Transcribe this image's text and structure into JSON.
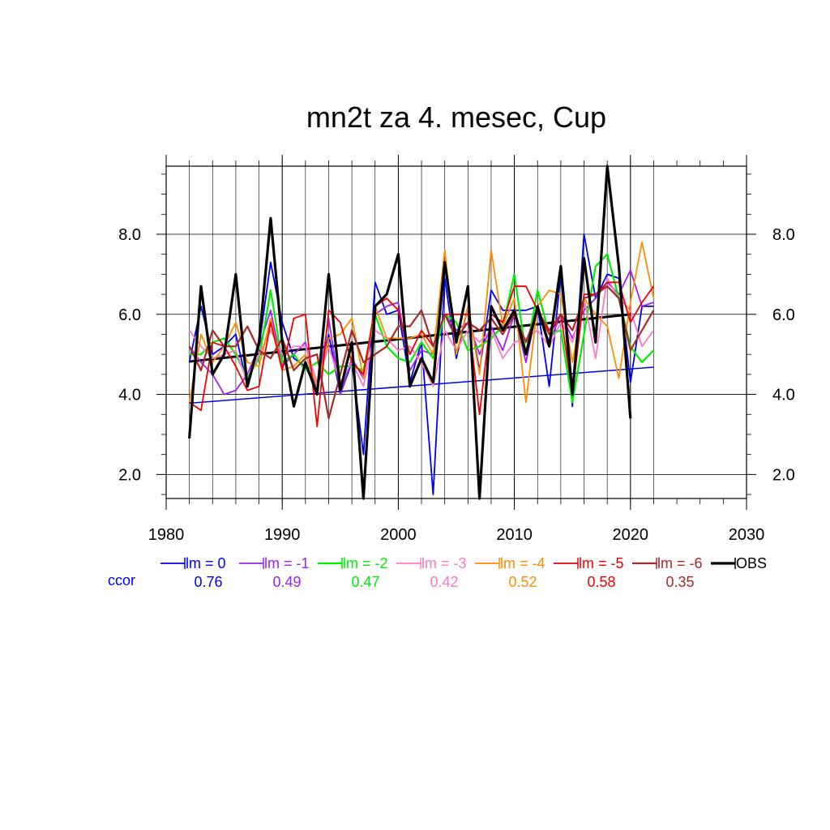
{
  "chart_data": {
    "type": "line",
    "title": "mn2t za 4. mesec, Cup",
    "xlabel": "",
    "ylabel": "",
    "xlim": [
      1980,
      2030
    ],
    "ylim": [
      1.4,
      9.7
    ],
    "x_ticks": [
      "1980",
      "1990",
      "2000",
      "2010",
      "2020",
      "2030"
    ],
    "y_ticks": [
      "2.0",
      "4.0",
      "6.0",
      "8.0"
    ],
    "grid": true,
    "legend_position": "bottom",
    "ccor_label": "ccor",
    "x": [
      1982,
      1983,
      1984,
      1985,
      1986,
      1987,
      1988,
      1989,
      1990,
      1991,
      1992,
      1993,
      1994,
      1995,
      1996,
      1997,
      1998,
      1999,
      2000,
      2001,
      2002,
      2003,
      2004,
      2005,
      2006,
      2007,
      2008,
      2009,
      2010,
      2011,
      2012,
      2013,
      2014,
      2015,
      2016,
      2017,
      2018,
      2019,
      2020,
      2021,
      2022
    ],
    "series": [
      {
        "name": "lm = 0",
        "ccor": "0.76",
        "color": "#0000ee",
        "width": 1.8,
        "values": [
          4.8,
          6.2,
          5.0,
          5.2,
          5.5,
          4.2,
          5.2,
          7.3,
          5.8,
          4.9,
          4.7,
          4.1,
          5.5,
          4.0,
          4.8,
          2.5,
          6.8,
          6.0,
          6.1,
          4.3,
          5.3,
          1.5,
          6.9,
          4.9,
          6.2,
          4.6,
          6.6,
          6.1,
          6.1,
          6.1,
          6.2,
          4.2,
          7.0,
          3.7,
          8.0,
          6.4,
          7.0,
          6.9,
          4.3,
          6.2,
          6.2
        ]
      },
      {
        "name": "lm = -1",
        "ccor": "0.49",
        "color": "#a020f0",
        "width": 1.8,
        "values": [
          5.2,
          4.8,
          4.5,
          4.0,
          4.1,
          4.5,
          5.2,
          6.1,
          4.7,
          5.0,
          5.3,
          4.0,
          5.9,
          4.0,
          4.9,
          4.4,
          6.0,
          6.2,
          6.3,
          4.6,
          5.1,
          5.0,
          6.0,
          5.6,
          5.8,
          5.0,
          5.7,
          5.1,
          6.0,
          4.8,
          6.2,
          5.3,
          6.0,
          5.4,
          6.1,
          6.4,
          6.8,
          6.5,
          7.1,
          6.2,
          6.3
        ]
      },
      {
        "name": "lm = -2",
        "ccor": "0.47",
        "color": "#00ee00",
        "width": 2.2,
        "values": [
          5.0,
          5.0,
          5.3,
          5.4,
          5.0,
          4.4,
          4.9,
          6.6,
          4.8,
          5.0,
          4.6,
          4.8,
          4.5,
          4.7,
          4.7,
          4.6,
          6.0,
          5.2,
          4.9,
          4.8,
          5.3,
          4.9,
          6.0,
          5.8,
          5.1,
          5.2,
          5.4,
          5.7,
          7.0,
          5.0,
          6.6,
          5.5,
          5.6,
          3.8,
          5.5,
          7.2,
          7.5,
          6.4,
          5.2,
          4.8,
          5.1
        ]
      },
      {
        "name": "lm = -3",
        "ccor": "0.42",
        "color": "#ff79c6",
        "width": 1.8,
        "values": [
          5.6,
          5.2,
          4.9,
          5.0,
          5.1,
          4.3,
          5.0,
          5.6,
          5.0,
          5.2,
          5.2,
          4.3,
          5.2,
          4.3,
          4.8,
          4.2,
          5.6,
          5.4,
          5.1,
          5.2,
          4.8,
          4.2,
          5.6,
          5.1,
          5.6,
          5.3,
          5.6,
          4.9,
          5.3,
          5.4,
          5.6,
          5.2,
          5.8,
          5.3,
          6.4,
          4.9,
          6.9,
          6.4,
          6.1,
          5.2,
          5.6
        ]
      },
      {
        "name": "lm = -4",
        "ccor": "0.52",
        "color": "#ff8c00",
        "width": 1.8,
        "values": [
          3.8,
          5.5,
          4.8,
          5.2,
          5.8,
          4.8,
          4.7,
          5.9,
          4.6,
          4.7,
          5.0,
          4.2,
          5.4,
          5.5,
          5.9,
          4.4,
          6.2,
          5.4,
          5.4,
          5.4,
          5.5,
          5.0,
          7.6,
          5.0,
          6.2,
          4.5,
          7.6,
          5.7,
          6.4,
          3.8,
          6.2,
          6.6,
          6.5,
          4.8,
          6.4,
          6.0,
          5.7,
          4.4,
          6.3,
          7.8,
          6.4
        ]
      },
      {
        "name": "lm = -5",
        "ccor": "0.58",
        "color": "#ee0000",
        "width": 1.8,
        "values": [
          3.8,
          3.6,
          5.3,
          5.2,
          4.7,
          4.1,
          4.2,
          5.8,
          4.6,
          5.9,
          6.0,
          3.2,
          6.1,
          5.8,
          4.8,
          4.5,
          6.2,
          6.4,
          6.1,
          5.0,
          5.6,
          5.2,
          6.0,
          6.0,
          6.0,
          3.5,
          6.0,
          5.8,
          6.7,
          6.7,
          6.1,
          5.5,
          6.0,
          4.0,
          6.5,
          6.5,
          6.8,
          6.8,
          5.8,
          6.3,
          6.7
        ]
      },
      {
        "name": "lm = -6",
        "ccor": "0.35",
        "color": "#a52a2a",
        "width": 2.2,
        "values": [
          5.2,
          4.6,
          5.6,
          5.2,
          5.2,
          5.7,
          5.1,
          4.9,
          5.4,
          4.6,
          4.9,
          5.0,
          3.4,
          4.5,
          5.6,
          4.8,
          5.0,
          5.2,
          5.7,
          5.7,
          6.1,
          5.2,
          6.0,
          5.4,
          5.8,
          5.6,
          5.9,
          5.5,
          6.0,
          5.3,
          6.1,
          5.6,
          6.0,
          5.6,
          6.4,
          6.5,
          6.7,
          6.4,
          5.1,
          5.6,
          6.1
        ]
      },
      {
        "name": "OBS",
        "ccor": "",
        "color": "#000000",
        "width": 3.2,
        "values": [
          2.9,
          6.7,
          4.5,
          5.0,
          7.0,
          4.2,
          5.3,
          8.4,
          5.3,
          3.7,
          4.8,
          4.0,
          7.0,
          4.1,
          5.3,
          1.4,
          6.2,
          6.5,
          7.5,
          4.2,
          4.9,
          4.3,
          7.3,
          5.3,
          6.7,
          1.4,
          6.2,
          5.6,
          6.1,
          5.0,
          6.2,
          5.2,
          7.2,
          4.0,
          7.4,
          5.3,
          9.7,
          7.2,
          3.4,
          null,
          null
        ]
      }
    ],
    "trend_lines": [
      {
        "name": "lm = 0 trend",
        "color": "#0000ee",
        "width": 1.5,
        "x": [
          1982,
          2022
        ],
        "values": [
          3.78,
          4.68
        ]
      },
      {
        "name": "OBS trend",
        "color": "#000000",
        "width": 3.0,
        "x": [
          1982,
          2020
        ],
        "values": [
          4.82,
          6.0
        ]
      }
    ]
  }
}
